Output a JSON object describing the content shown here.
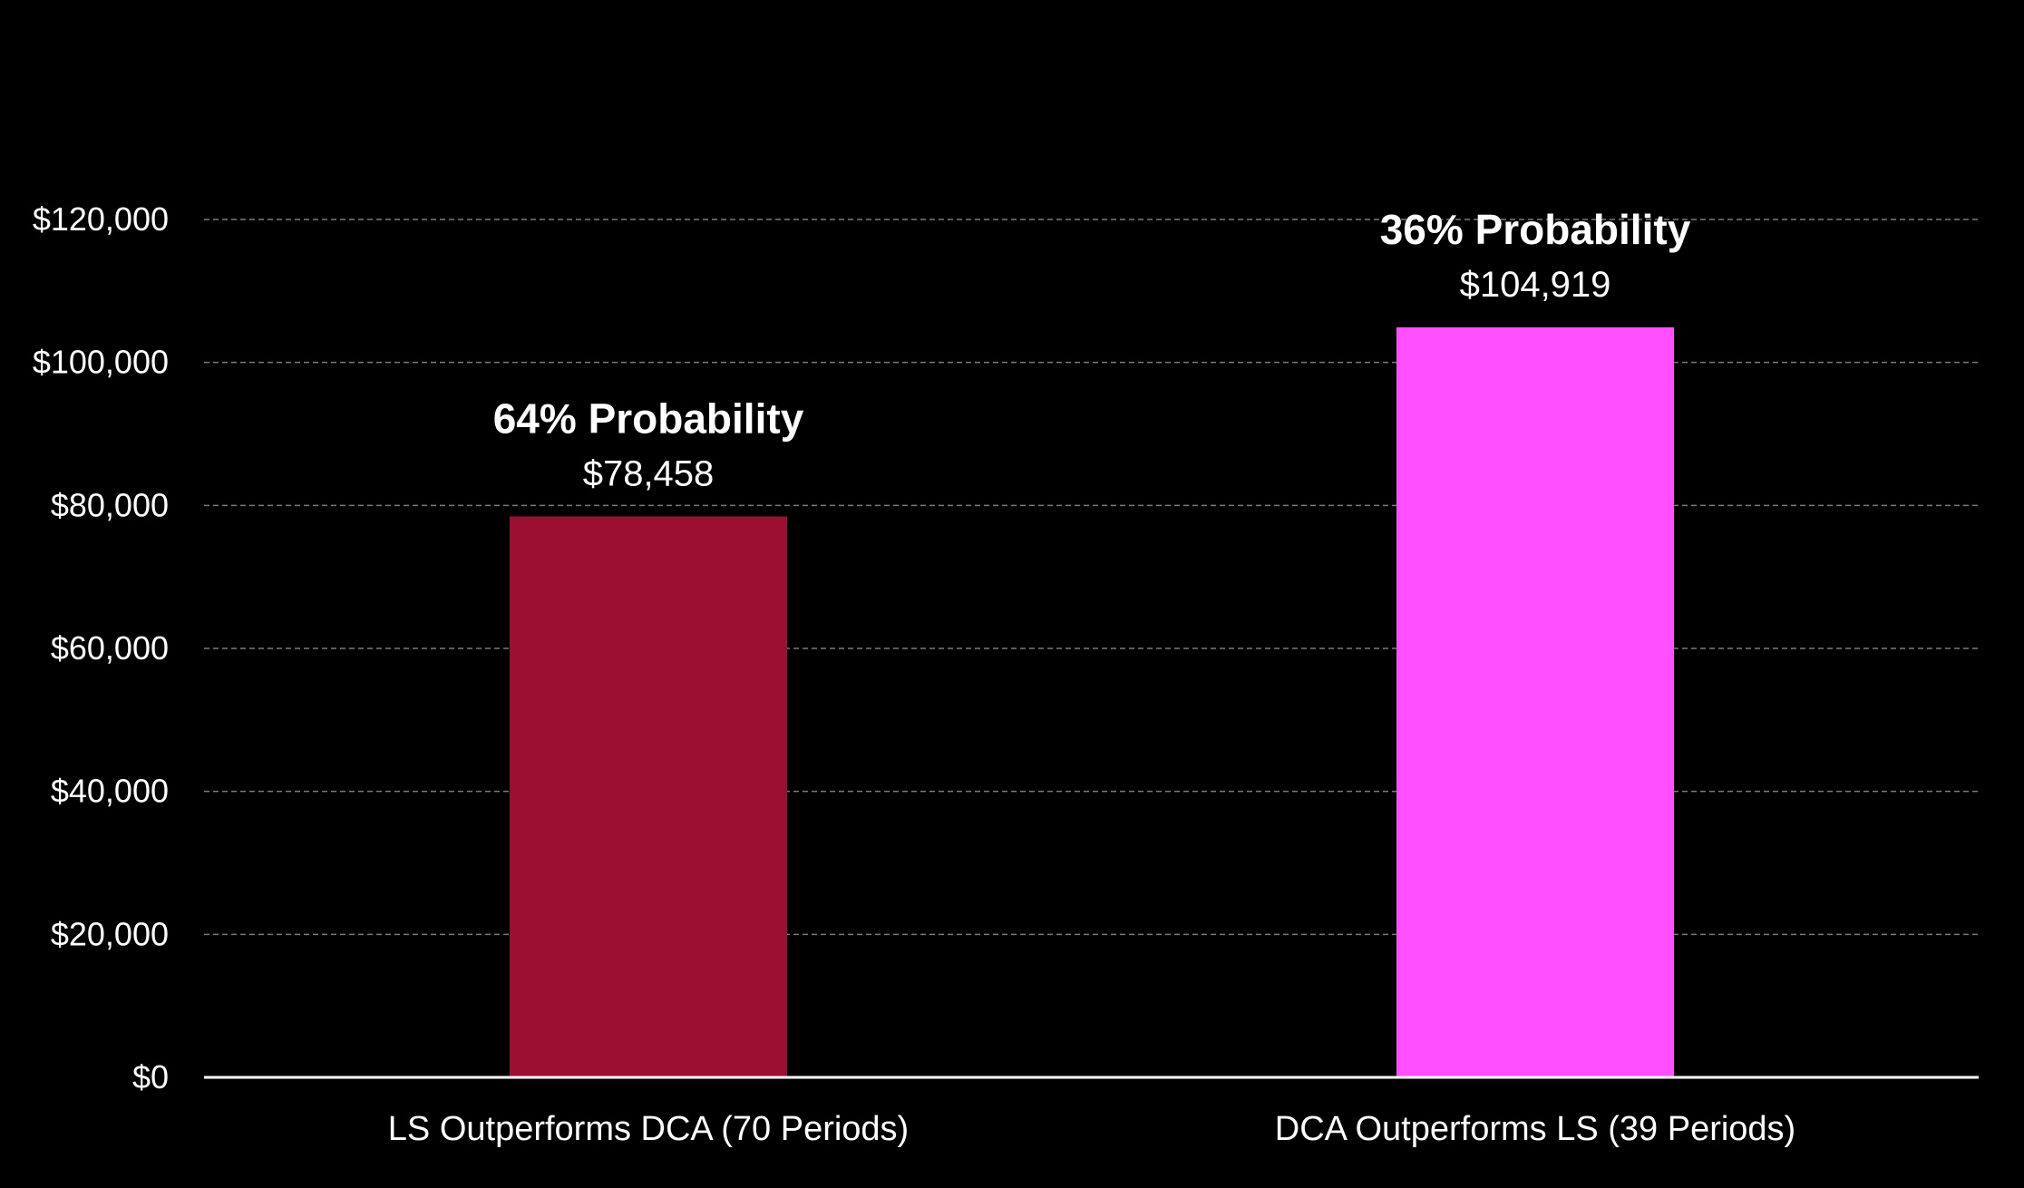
{
  "chart_data": {
    "type": "bar",
    "categories": [
      "LS Outperforms DCA (70 Periods)",
      "DCA Outperforms LS (39 Periods)"
    ],
    "values": [
      78458,
      104919
    ],
    "value_labels": [
      "$78,458",
      "$104,919"
    ],
    "probability_labels": [
      "64% Probability",
      "36% Probability"
    ],
    "colors": [
      "#9B1032",
      "#FF4FFF"
    ],
    "ylim": [
      0,
      120000
    ],
    "yticks": [
      0,
      20000,
      40000,
      60000,
      80000,
      100000,
      120000
    ],
    "ytick_labels": [
      "$0",
      "$20,000",
      "$40,000",
      "$60,000",
      "$80,000",
      "$100,000",
      "$120,000"
    ],
    "grid": true,
    "legend": "none",
    "background": "#000000",
    "title": "",
    "xlabel": "",
    "ylabel": ""
  }
}
